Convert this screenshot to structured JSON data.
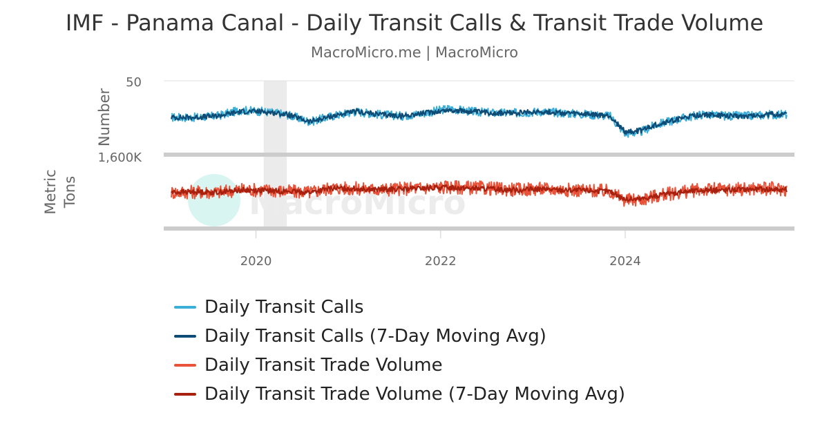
{
  "header": {
    "title": "IMF - Panama Canal - Daily Transit Calls & Transit Trade Volume",
    "subtitle": "MacroMicro.me | MacroMicro"
  },
  "watermark": "MacroMicro",
  "colors": {
    "calls": "#3BAFDA",
    "calls_ma": "#0F4C75",
    "volume": "#E8533A",
    "volume_ma": "#A8200E",
    "pane_border": "#cccccc",
    "shade": "#ebebeb"
  },
  "chart_data": {
    "type": "line",
    "x_range": [
      "2019-01-01",
      "2025-11-01"
    ],
    "x_ticks": [
      "2020",
      "2022",
      "2024"
    ],
    "shaded_period": [
      "2020-02-01",
      "2020-05-01"
    ],
    "panes": [
      {
        "ylabel": "Number",
        "top_tick": "50",
        "ylim": [
          0,
          50
        ],
        "series": [
          {
            "name": "Daily Transit Calls",
            "color": "#3BAFDA",
            "x": [
              "2019-02",
              "2019-05",
              "2019-08",
              "2019-11",
              "2020-02",
              "2020-05",
              "2020-08",
              "2020-11",
              "2021-02",
              "2021-05",
              "2021-08",
              "2021-11",
              "2022-02",
              "2022-05",
              "2022-08",
              "2022-11",
              "2023-02",
              "2023-05",
              "2023-08",
              "2023-11",
              "2024-01",
              "2024-03",
              "2024-05",
              "2024-08",
              "2024-11",
              "2025-02",
              "2025-05",
              "2025-08",
              "2025-10"
            ],
            "y": [
              25,
              25,
              26,
              30,
              29,
              27,
              22,
              26,
              29,
              27,
              26,
              28,
              31,
              29,
              28,
              28,
              29,
              28,
              27,
              26,
              14,
              15,
              20,
              24,
              27,
              26,
              26,
              27,
              27
            ]
          },
          {
            "name": "Daily Transit Calls (7-Day Moving Avg)",
            "color": "#0F4C75",
            "x": [
              "2019-02",
              "2019-05",
              "2019-08",
              "2019-11",
              "2020-02",
              "2020-05",
              "2020-08",
              "2020-11",
              "2021-02",
              "2021-05",
              "2021-08",
              "2021-11",
              "2022-02",
              "2022-05",
              "2022-08",
              "2022-11",
              "2023-02",
              "2023-05",
              "2023-08",
              "2023-11",
              "2024-01",
              "2024-03",
              "2024-05",
              "2024-08",
              "2024-11",
              "2025-02",
              "2025-05",
              "2025-08",
              "2025-10"
            ],
            "y": [
              25,
              25,
              26,
              29,
              29,
              27,
              22,
              26,
              29,
              27,
              26,
              28,
              30,
              29,
              28,
              28,
              29,
              28,
              27,
              26,
              15,
              16,
              20,
              24,
              27,
              26,
              26,
              27,
              27
            ]
          }
        ]
      },
      {
        "ylabel": "Metric Tons",
        "top_tick": "1,600K",
        "ylim": [
          0,
          1600000
        ],
        "series": [
          {
            "name": "Daily Transit Trade Volume",
            "color": "#E8533A",
            "x": [
              "2019-02",
              "2019-05",
              "2019-08",
              "2019-11",
              "2020-02",
              "2020-05",
              "2020-08",
              "2020-11",
              "2021-02",
              "2021-05",
              "2021-08",
              "2021-11",
              "2022-02",
              "2022-05",
              "2022-08",
              "2022-11",
              "2023-02",
              "2023-05",
              "2023-08",
              "2023-11",
              "2024-01",
              "2024-03",
              "2024-05",
              "2024-08",
              "2024-11",
              "2025-02",
              "2025-05",
              "2025-08",
              "2025-10"
            ],
            "y": [
              800000,
              810000,
              800000,
              860000,
              850000,
              820000,
              800000,
              900000,
              880000,
              860000,
              880000,
              900000,
              920000,
              900000,
              880000,
              860000,
              880000,
              860000,
              840000,
              820000,
              620000,
              640000,
              720000,
              800000,
              860000,
              860000,
              880000,
              880000,
              860000
            ]
          },
          {
            "name": "Daily Transit Trade Volume (7-Day Moving Avg)",
            "color": "#A8200E",
            "x": [
              "2019-02",
              "2019-05",
              "2019-08",
              "2019-11",
              "2020-02",
              "2020-05",
              "2020-08",
              "2020-11",
              "2021-02",
              "2021-05",
              "2021-08",
              "2021-11",
              "2022-02",
              "2022-05",
              "2022-08",
              "2022-11",
              "2023-02",
              "2023-05",
              "2023-08",
              "2023-11",
              "2024-01",
              "2024-03",
              "2024-05",
              "2024-08",
              "2024-11",
              "2025-02",
              "2025-05",
              "2025-08",
              "2025-10"
            ],
            "y": [
              800000,
              810000,
              800000,
              850000,
              840000,
              820000,
              800000,
              890000,
              880000,
              860000,
              870000,
              890000,
              910000,
              890000,
              870000,
              850000,
              870000,
              850000,
              840000,
              820000,
              640000,
              650000,
              720000,
              800000,
              850000,
              850000,
              870000,
              870000,
              860000
            ]
          }
        ]
      }
    ],
    "legend": [
      {
        "name": "Daily Transit Calls",
        "color": "#3BAFDA"
      },
      {
        "name": "Daily Transit Calls (7-Day Moving Avg)",
        "color": "#0F4C75"
      },
      {
        "name": "Daily Transit Trade Volume",
        "color": "#E8533A"
      },
      {
        "name": "Daily Transit Trade Volume (7-Day Moving Avg)",
        "color": "#A8200E"
      }
    ],
    "legend_position": "bottom"
  }
}
